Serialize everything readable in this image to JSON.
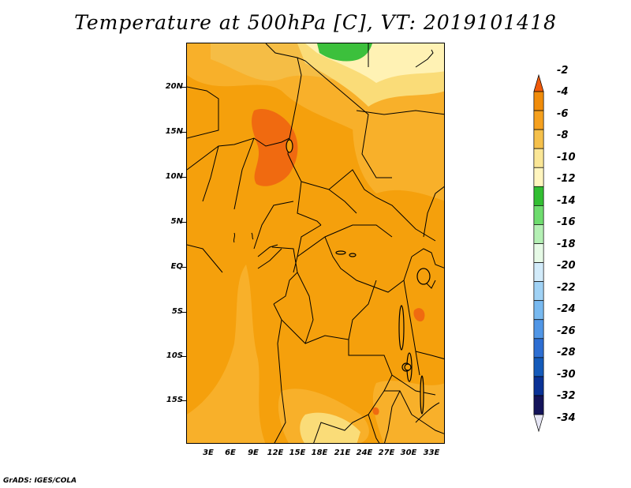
{
  "title": "Temperature at 500hPa [C], VT: 2019101418",
  "footer": "GrADS: IGES/COLA",
  "map": {
    "lat_labels": [
      "20N",
      "15N",
      "10N",
      "5N",
      "EQ",
      "5S",
      "10S",
      "15S"
    ],
    "lon_labels": [
      "3E",
      "6E",
      "9E",
      "12E",
      "15E",
      "18E",
      "21E",
      "24E",
      "27E",
      "30E",
      "33E"
    ]
  },
  "colorbar": {
    "labels": [
      "-2",
      "-4",
      "-6",
      "-8",
      "-10",
      "-12",
      "-14",
      "-16",
      "-18",
      "-20",
      "-22",
      "-24",
      "-26",
      "-28",
      "-30",
      "-32",
      "-34"
    ],
    "colors": [
      "#f05a0a",
      "#f08c0a",
      "#f5a01e",
      "#f5c04b",
      "#fae696",
      "#fff5be",
      "#32be32",
      "#6edc6e",
      "#b4f0b4",
      "#e6fae6",
      "#d2ebfa",
      "#a0d2f5",
      "#78b9f0",
      "#5096e6",
      "#2d6ed2",
      "#145aba",
      "#0a3296",
      "#14145a",
      "#e6e6f5"
    ]
  }
}
